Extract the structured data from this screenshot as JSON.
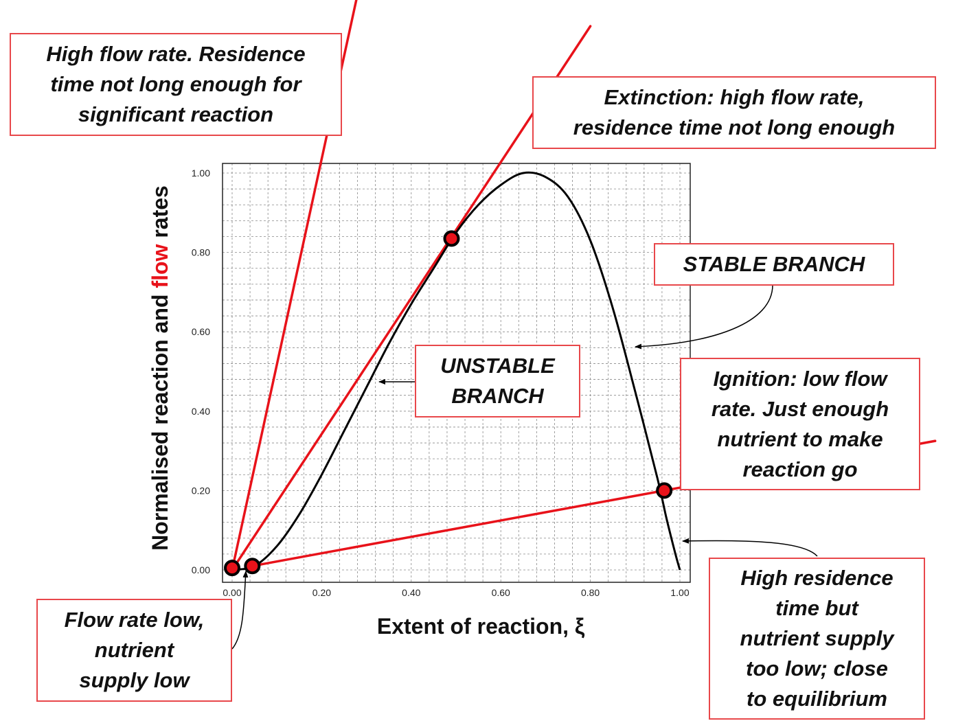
{
  "chart_data": {
    "type": "line",
    "xlabel": "Extent of reaction, ξ",
    "ylabel_parts": [
      "Normalised reaction and ",
      "flow",
      " rates"
    ],
    "xlim": [
      0,
      1.0
    ],
    "ylim": [
      0,
      1.0
    ],
    "x_ticks": [
      "0.00",
      "0.20",
      "0.40",
      "0.60",
      "0.80",
      "1.00"
    ],
    "y_ticks": [
      "0.00",
      "0.20",
      "0.40",
      "0.60",
      "0.80",
      "1.00"
    ],
    "grid": true,
    "reaction_curve": {
      "x": [
        0.0,
        0.05,
        0.1,
        0.15,
        0.2,
        0.25,
        0.3,
        0.35,
        0.4,
        0.45,
        0.5,
        0.55,
        0.6,
        0.65,
        0.7,
        0.75,
        0.8,
        0.85,
        0.9,
        0.95,
        0.97,
        0.99,
        1.0
      ],
      "y": [
        0.0,
        0.01,
        0.06,
        0.14,
        0.24,
        0.35,
        0.46,
        0.57,
        0.67,
        0.76,
        0.85,
        0.92,
        0.97,
        1.0,
        0.99,
        0.94,
        0.83,
        0.66,
        0.45,
        0.23,
        0.13,
        0.04,
        0.0
      ]
    },
    "flow_lines": [
      {
        "x": [
          0.0,
          0.28
        ],
        "y": [
          0.0,
          1.45
        ]
      },
      {
        "x": [
          0.0,
          0.8
        ],
        "y": [
          0.0,
          1.37
        ]
      },
      {
        "x": [
          0.045,
          1.57
        ],
        "y": [
          0.01,
          0.325
        ]
      }
    ],
    "points": [
      {
        "x": 0.0,
        "y": 0.005
      },
      {
        "x": 0.045,
        "y": 0.01
      },
      {
        "x": 0.49,
        "y": 0.835
      },
      {
        "x": 0.965,
        "y": 0.2
      }
    ],
    "annotations": [
      {
        "key": "high_flow",
        "text": "High flow rate. Residence\ntime not long enough for\nsignificant reaction"
      },
      {
        "key": "extinction",
        "text": "Extinction: high flow rate,\nresidence time not long enough"
      },
      {
        "key": "stable",
        "text": "STABLE BRANCH"
      },
      {
        "key": "unstable",
        "text": "UNSTABLE\nBRANCH"
      },
      {
        "key": "ignition",
        "text": "Ignition: low flow\nrate. Just enough\nnutrient to make\nreaction go"
      },
      {
        "key": "low_flow",
        "text": "Flow rate low,\nnutrient\nsupply low"
      },
      {
        "key": "high_residence",
        "text": "High residence\ntime but\nnutrient supply\ntoo low; close\nto equilibrium"
      }
    ],
    "colors": {
      "flow": "#e8121a",
      "reaction": "#000000",
      "box_border": "#e8474a",
      "grid": "#888888"
    }
  }
}
